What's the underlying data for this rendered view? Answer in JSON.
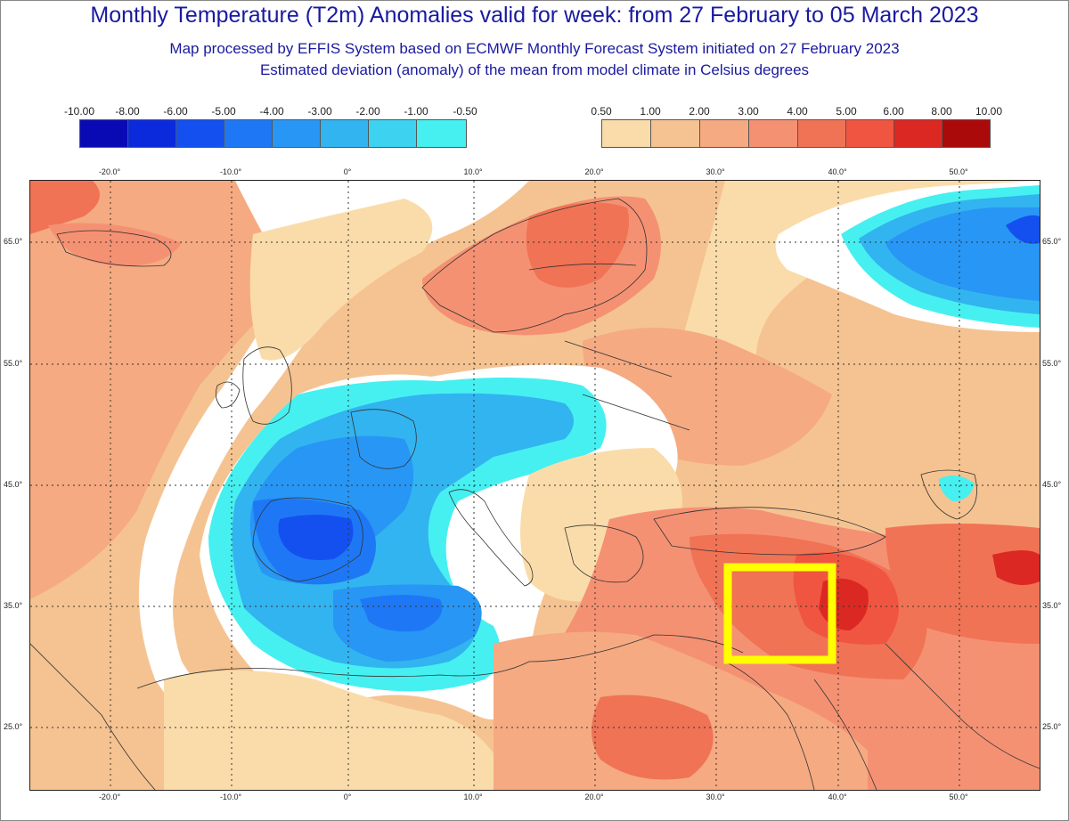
{
  "header": {
    "title": "Monthly Temperature (T2m) Anomalies valid for week: from 27 February to 05 March 2023",
    "subtitle_line1": "Map processed by EFFIS System based on ECMWF Monthly Forecast System initiated on 27 February 2023",
    "subtitle_line2": "Estimated deviation (anomaly) of the mean from model climate in Celsius degrees"
  },
  "legend_cold": {
    "labels": [
      "-10.00",
      "-8.00",
      "-6.00",
      "-5.00",
      "-4.00",
      "-3.00",
      "-2.00",
      "-1.00",
      "-0.50"
    ],
    "colors": [
      "#0a0ab4",
      "#0a2adc",
      "#1450f0",
      "#1e78f5",
      "#2896f5",
      "#32b4f0",
      "#3cd2f0",
      "#46f0f0"
    ]
  },
  "legend_warm": {
    "labels": [
      "0.50",
      "1.00",
      "2.00",
      "3.00",
      "4.00",
      "5.00",
      "6.00",
      "8.00",
      "10.00"
    ],
    "colors": [
      "#fadcaa",
      "#f5c391",
      "#f5aa82",
      "#f59173",
      "#f07355",
      "#f05541",
      "#dc2823",
      "#aa0a0a"
    ]
  },
  "axes": {
    "lon_labels": [
      "-20.0°",
      "-10.0°",
      "0°",
      "10.0°",
      "20.0°",
      "30.0°",
      "40.0°",
      "50.0°"
    ],
    "lat_labels": [
      "65.0°",
      "55.0°",
      "45.0°",
      "35.0°",
      "25.0°"
    ]
  },
  "highlight": {
    "color": "#ffff00",
    "label": ""
  }
}
